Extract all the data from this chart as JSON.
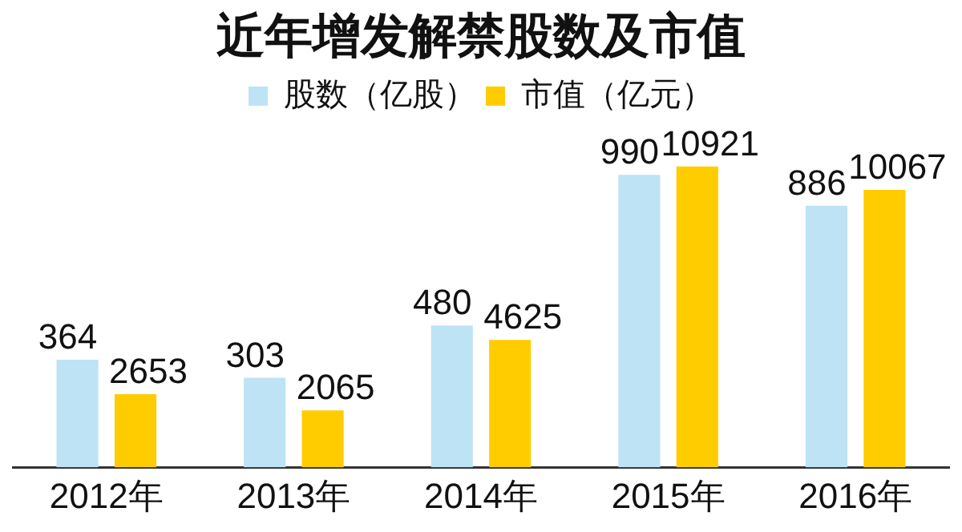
{
  "chart_data": {
    "type": "bar",
    "title": "近年增发解禁股数及市值",
    "categories": [
      "2012年",
      "2013年",
      "2014年",
      "2015年",
      "2016年"
    ],
    "series": [
      {
        "name": "股数（亿股）",
        "color": "#bde3f5",
        "values": [
          364,
          303,
          480,
          990,
          886
        ]
      },
      {
        "name": "市值（亿元）",
        "color": "#ffcc00",
        "axis": "y2",
        "values": [
          2653,
          2065,
          4625,
          10921,
          10067
        ]
      }
    ],
    "data_labels": true,
    "legend": "top",
    "grid": false
  }
}
